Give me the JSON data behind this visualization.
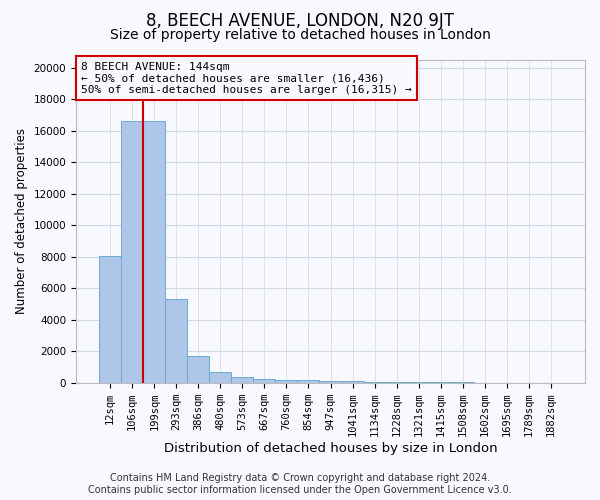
{
  "title": "8, BEECH AVENUE, LONDON, N20 9JT",
  "subtitle": "Size of property relative to detached houses in London",
  "xlabel": "Distribution of detached houses by size in London",
  "ylabel": "Number of detached properties",
  "footer_line1": "Contains HM Land Registry data © Crown copyright and database right 2024.",
  "footer_line2": "Contains public sector information licensed under the Open Government Licence v3.0.",
  "annotation_line1": "8 BEECH AVENUE: 144sqm",
  "annotation_line2": "← 50% of detached houses are smaller (16,436)",
  "annotation_line3": "50% of semi-detached houses are larger (16,315) →",
  "bar_labels": [
    "12sqm",
    "106sqm",
    "199sqm",
    "293sqm",
    "386sqm",
    "480sqm",
    "573sqm",
    "667sqm",
    "760sqm",
    "854sqm",
    "947sqm",
    "1041sqm",
    "1134sqm",
    "1228sqm",
    "1321sqm",
    "1415sqm",
    "1508sqm",
    "1602sqm",
    "1695sqm",
    "1789sqm",
    "1882sqm"
  ],
  "bar_values": [
    8050,
    16600,
    16600,
    5300,
    1720,
    700,
    350,
    240,
    200,
    190,
    110,
    95,
    80,
    65,
    50,
    42,
    32,
    22,
    15,
    10,
    6
  ],
  "bar_color": "#aec6e8",
  "bar_edge_color": "#6aaad4",
  "grid_color": "#d0d8e8",
  "property_line_color": "#cc0000",
  "ylim": [
    0,
    20500
  ],
  "yticks": [
    0,
    2000,
    4000,
    6000,
    8000,
    10000,
    12000,
    14000,
    16000,
    18000,
    20000
  ],
  "background_color": "#f8f8ff",
  "title_fontsize": 12,
  "subtitle_fontsize": 10,
  "xlabel_fontsize": 9.5,
  "ylabel_fontsize": 8.5,
  "tick_fontsize": 7.5,
  "annotation_fontsize": 8,
  "footer_fontsize": 7
}
